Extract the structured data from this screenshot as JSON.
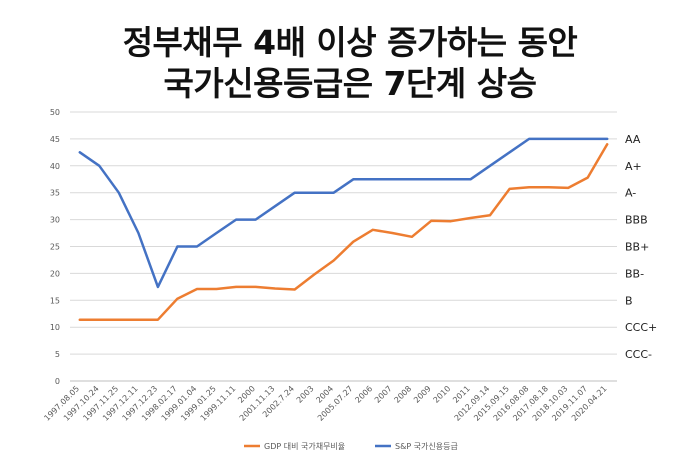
{
  "title_lines": [
    "정부채무 4배 이상 증가하는 동안",
    "국가신용등급은 7단계 상승"
  ],
  "chart_data": {
    "type": "line",
    "title": "정부채무 4배 이상 증가하는 동안 국가신용등급은 7단계 상승",
    "categories": [
      "1997.08.05",
      "1997.10.24",
      "1997.11.25",
      "1997.12.11",
      "1997.12.23",
      "1998.02.17",
      "1999.01.04",
      "1999.01.25",
      "1999.11.11",
      "2000",
      "2001.11.13",
      "2002.7.24",
      "2003",
      "2004",
      "2005.07.27",
      "2006",
      "2007",
      "2008",
      "2009",
      "2010",
      "2011",
      "2012.09.14",
      "2015.09.15",
      "2016.08.08",
      "2017.08.18",
      "2018.10.03",
      "2019.11.07",
      "2020.04.21"
    ],
    "series": [
      {
        "name": "GDP 대비 국가채무비율",
        "color": "#ED7D31",
        "values": [
          11.4,
          11.4,
          11.4,
          11.4,
          11.4,
          15.3,
          17.1,
          17.1,
          17.5,
          17.5,
          17.2,
          17.0,
          19.8,
          22.4,
          25.9,
          28.1,
          27.5,
          26.8,
          29.8,
          29.7,
          30.3,
          30.8,
          35.7,
          36.0,
          36.0,
          35.9,
          37.8,
          44.0
        ]
      },
      {
        "name": "S&P 국가신용등급",
        "color": "#4472C4",
        "values": [
          42.5,
          40.0,
          35.0,
          27.5,
          17.5,
          25.0,
          25.0,
          27.5,
          30.0,
          30.0,
          32.5,
          35.0,
          35.0,
          35.0,
          37.5,
          37.5,
          37.5,
          37.5,
          37.5,
          37.5,
          37.5,
          40.0,
          42.5,
          45.0,
          45.0,
          45.0,
          45.0,
          45.0
        ]
      }
    ],
    "ylim": [
      0,
      50
    ],
    "yticks": [
      0,
      5,
      10,
      15,
      20,
      25,
      30,
      35,
      40,
      45,
      50
    ],
    "right_labels": [
      {
        "label": "AA",
        "value": 45
      },
      {
        "label": "A+",
        "value": 40
      },
      {
        "label": "A-",
        "value": 35
      },
      {
        "label": "BBB",
        "value": 30
      },
      {
        "label": "BB+",
        "value": 25
      },
      {
        "label": "BB-",
        "value": 20
      },
      {
        "label": "B",
        "value": 15
      },
      {
        "label": "CCC+",
        "value": 10
      },
      {
        "label": "CCC-",
        "value": 5
      }
    ],
    "grid": true,
    "legend_position": "bottom-center"
  }
}
